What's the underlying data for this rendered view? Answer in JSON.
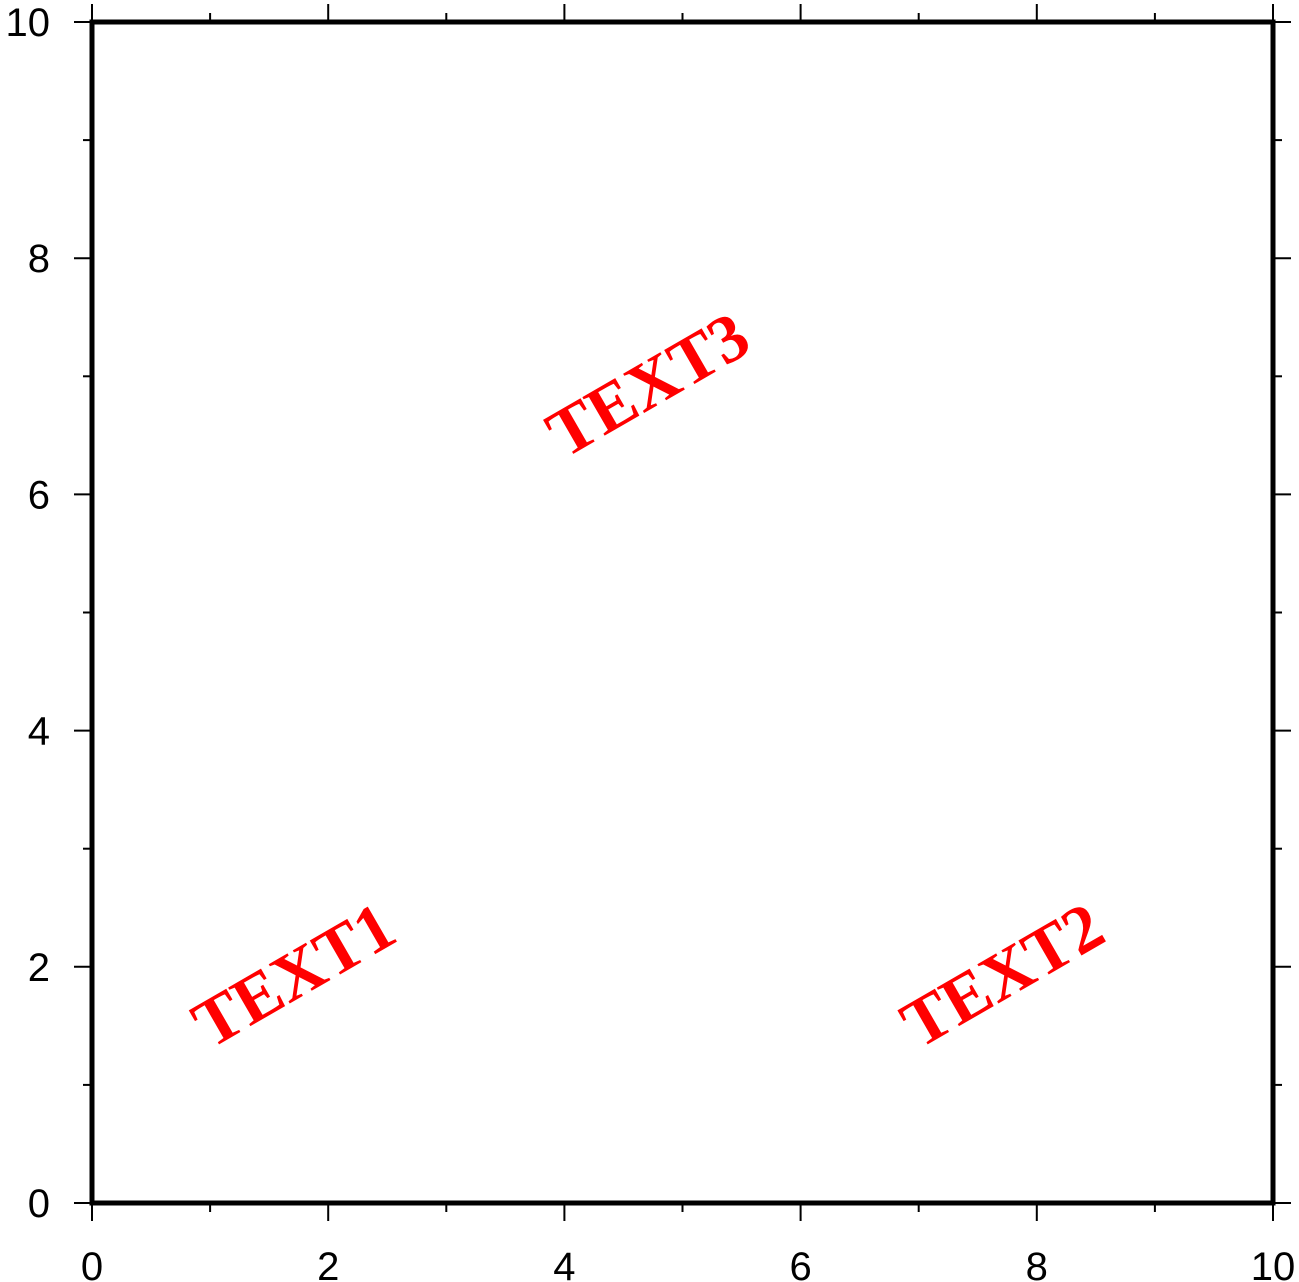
{
  "chart_data": {
    "type": "scatter",
    "title": "",
    "xlabel": "",
    "ylabel": "",
    "xlim": [
      0,
      10
    ],
    "ylim": [
      0,
      10
    ],
    "x_major_ticks": [
      0,
      2,
      4,
      6,
      8,
      10
    ],
    "x_minor_ticks": [
      1,
      3,
      5,
      7,
      9
    ],
    "y_major_ticks": [
      0,
      2,
      4,
      6,
      8,
      10
    ],
    "y_minor_ticks": [
      1,
      3,
      5,
      7,
      9
    ],
    "x_tick_labels": [
      "0",
      "2",
      "4",
      "6",
      "8",
      "10"
    ],
    "y_tick_labels": [
      "0",
      "2",
      "4",
      "6",
      "8",
      "10"
    ],
    "grid": false,
    "frame": "all four sides with ticks",
    "text_color": "#ff0000",
    "annotations": [
      {
        "text": "TEXT1",
        "x": 1.0,
        "y": 1.3,
        "angle": 30
      },
      {
        "text": "TEXT2",
        "x": 7.0,
        "y": 1.3,
        "angle": 30
      },
      {
        "text": "TEXT3",
        "x": 4.0,
        "y": 6.3,
        "angle": 30
      }
    ]
  }
}
